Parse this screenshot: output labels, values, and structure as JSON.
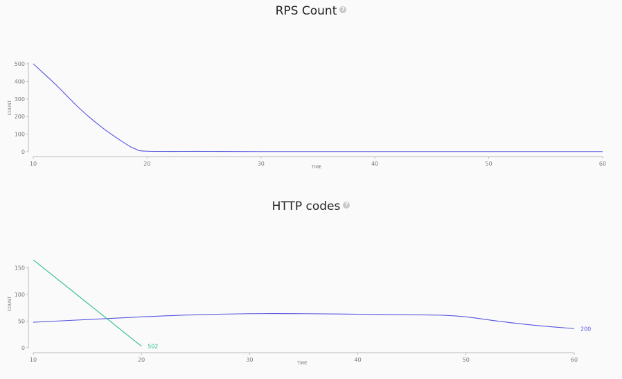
{
  "chart_data": [
    {
      "type": "line",
      "title": "RPS Count",
      "xlabel": "TIME",
      "ylabel": "COUNT",
      "xlim": [
        10,
        60
      ],
      "ylim": [
        0,
        500
      ],
      "xticks": [
        10,
        20,
        30,
        40,
        50,
        60
      ],
      "yticks": [
        0,
        100,
        200,
        300,
        400,
        500
      ],
      "grid": false,
      "series": [
        {
          "color": "#5555e0",
          "x": [
            10,
            12,
            14,
            16,
            18,
            19,
            20,
            25,
            30,
            40,
            50,
            60
          ],
          "y": [
            500,
            380,
            250,
            140,
            50,
            15,
            3,
            2,
            1,
            1,
            1,
            1
          ]
        }
      ]
    },
    {
      "type": "line",
      "title": "HTTP codes",
      "xlabel": "TIME",
      "ylabel": "COUNT",
      "xlim": [
        10,
        60
      ],
      "ylim": [
        0,
        165
      ],
      "xticks": [
        10,
        20,
        30,
        40,
        50,
        60
      ],
      "yticks": [
        0,
        50,
        100,
        150
      ],
      "grid": false,
      "series": [
        {
          "name": "200",
          "color": "#5555e0",
          "x": [
            10,
            15,
            20,
            25,
            30,
            35,
            40,
            45,
            48,
            50,
            53,
            56,
            60
          ],
          "y": [
            48,
            53,
            58,
            62,
            64,
            64,
            63,
            62,
            61,
            58,
            50,
            43,
            36
          ]
        },
        {
          "name": "502",
          "color": "#2ebd8a",
          "x": [
            10,
            20
          ],
          "y": [
            165,
            3
          ]
        }
      ]
    }
  ]
}
